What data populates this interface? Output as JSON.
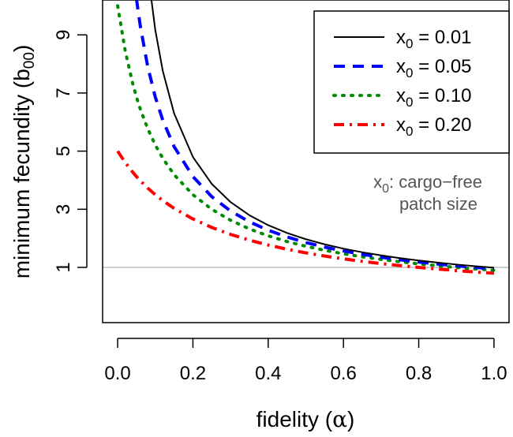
{
  "chart_data": {
    "type": "line",
    "xlabel_text": "fidelity (",
    "xlabel_symbol": "α",
    "xlabel_close": ")",
    "ylabel_text": "minimum fecundity (b",
    "ylabel_sub": "00",
    "ylabel_close": ")",
    "xlim": [
      -0.04,
      1.04
    ],
    "ylim": [
      -0.9,
      10.2
    ],
    "x_ticks": [
      0.0,
      0.2,
      0.4,
      0.6,
      0.8,
      1.0
    ],
    "x_tick_labels": [
      "0.0",
      "0.2",
      "0.4",
      "0.6",
      "0.8",
      "1.0"
    ],
    "y_ticks": [
      1,
      3,
      5,
      7,
      9
    ],
    "y_tick_labels": [
      "1",
      "3",
      "5",
      "7",
      "9"
    ],
    "reference_line": {
      "y": 1,
      "color": "#bebebe"
    },
    "x": [
      0.0,
      0.02,
      0.04,
      0.05,
      0.06,
      0.08,
      0.1,
      0.12,
      0.15,
      0.2,
      0.25,
      0.3,
      0.35,
      0.4,
      0.45,
      0.5,
      0.55,
      0.6,
      0.65,
      0.7,
      0.75,
      0.8,
      0.85,
      0.9,
      0.95,
      1.0
    ],
    "series": [
      {
        "name_prefix": "x",
        "name_sub": "0",
        "name_value": " = 0.01",
        "x0": 0.01,
        "color": "#000000",
        "dash": "",
        "width": 2
      },
      {
        "name_prefix": "x",
        "name_sub": "0",
        "name_value": " = 0.05",
        "x0": 0.05,
        "color": "#0000ff",
        "dash": "14 10",
        "width": 4
      },
      {
        "name_prefix": "x",
        "name_sub": "0",
        "name_value": " = 0.10",
        "x0": 0.1,
        "color": "#008b00",
        "dash": "2 9",
        "width": 4
      },
      {
        "name_prefix": "x",
        "name_sub": "0",
        "name_value": " = 0.20",
        "x0": 0.2,
        "color": "#ff0000",
        "dash": "13 7 3 7",
        "width": 4
      }
    ],
    "note_line1_prefix": "x",
    "note_line1_sub": "0",
    "note_line1_rest": ": cargo−free",
    "note_line2": "patch size",
    "grid": false,
    "legend_position": "top-right"
  }
}
